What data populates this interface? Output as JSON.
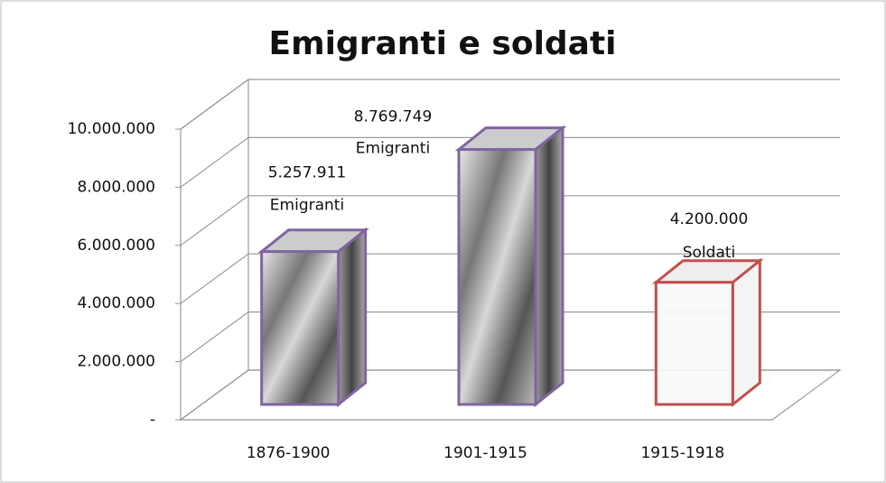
{
  "chart_data": {
    "type": "bar3d",
    "title": "Emigranti e soldati",
    "categories": [
      "1876-1900",
      "1901-1915",
      "1915-1918"
    ],
    "values": [
      5257911,
      8769749,
      4200000
    ],
    "value_labels": [
      "5.257.911",
      "8.769.749",
      "4.200.000"
    ],
    "label_names": [
      "Emigranti",
      "Emigranti",
      "Soldati"
    ],
    "colors": [
      "#8064a2",
      "#8064a2",
      "#c0504d"
    ],
    "ylim": [
      0,
      10000000
    ],
    "yticks": [
      {
        "value": 0,
        "label": "-"
      },
      {
        "value": 2000000,
        "label": "2.000.000"
      },
      {
        "value": 4000000,
        "label": "4.000.000"
      },
      {
        "value": 6000000,
        "label": "6.000.000"
      },
      {
        "value": 8000000,
        "label": "8.000.000"
      },
      {
        "value": 10000000,
        "label": "10.000.000"
      }
    ],
    "grid": true
  }
}
